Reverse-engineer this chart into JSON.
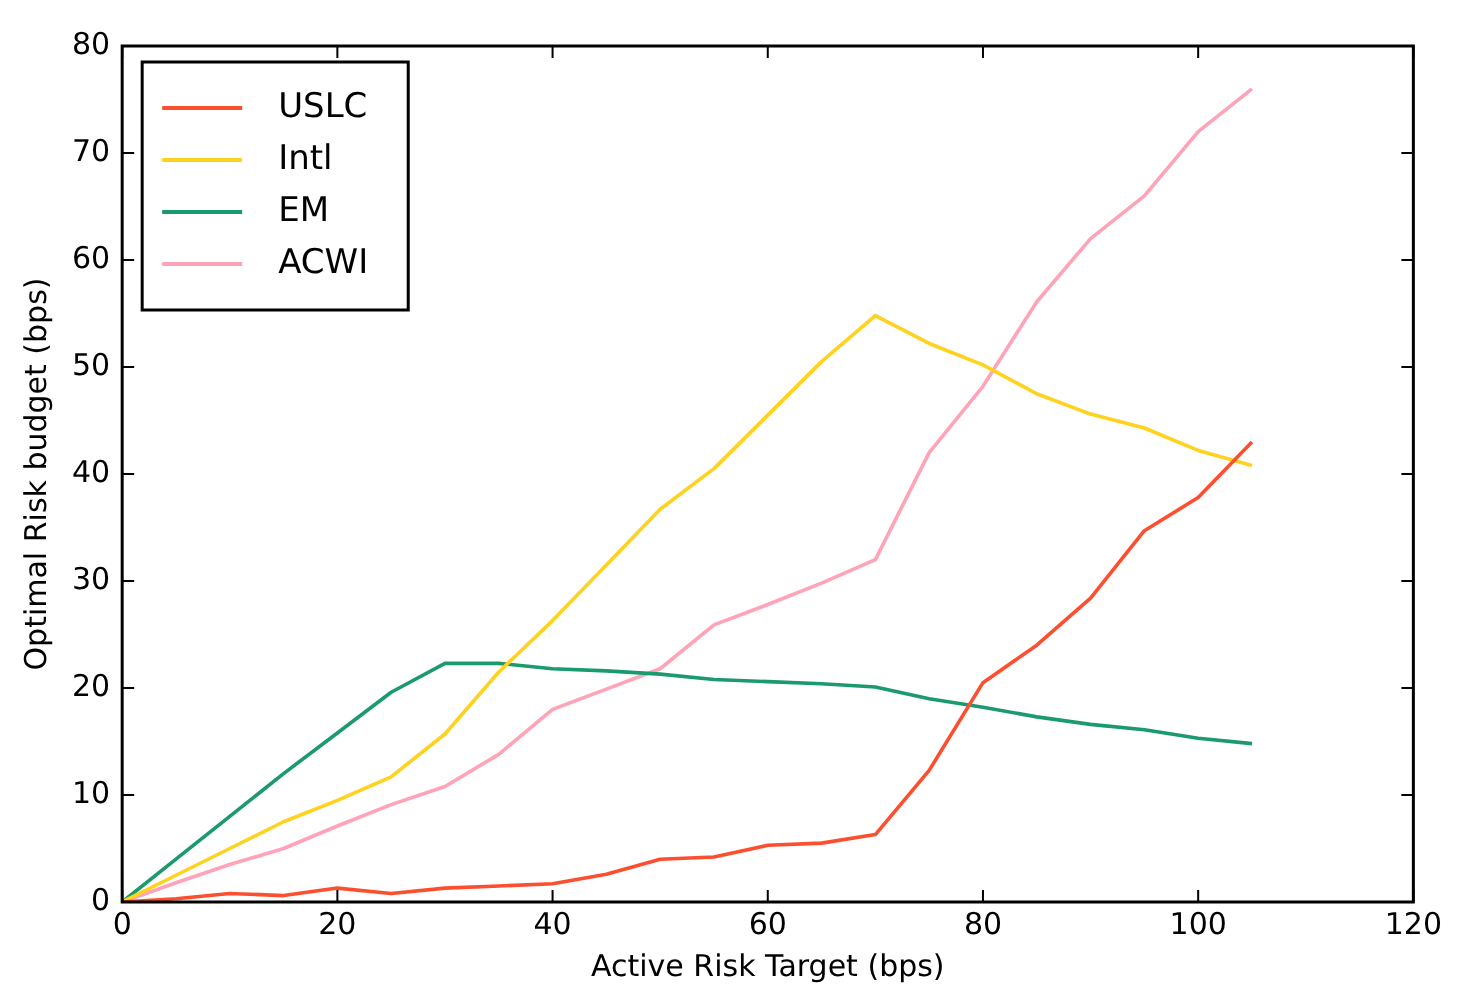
{
  "chart_data": {
    "type": "line",
    "xlabel": "Active Risk Target (bps)",
    "ylabel": "Optimal Risk budget (bps)",
    "x": [
      0,
      5,
      10,
      15,
      20,
      25,
      30,
      35,
      40,
      45,
      50,
      55,
      60,
      65,
      70,
      75,
      80,
      85,
      90,
      95,
      100,
      105
    ],
    "series": [
      {
        "name": "USLC",
        "color": "#fc4f30",
        "values": [
          0,
          0.3,
          0.8,
          0.6,
          1.3,
          0.8,
          1.3,
          1.5,
          1.7,
          2.6,
          4.0,
          4.2,
          5.3,
          5.5,
          6.3,
          12.3,
          20.5,
          24,
          28.4,
          34.7,
          37.8,
          43
        ]
      },
      {
        "name": "Intl",
        "color": "#ffd21f",
        "values": [
          0,
          2.5,
          5,
          7.5,
          9.5,
          11.7,
          15.7,
          21.5,
          26.3,
          31.5,
          36.7,
          40.5,
          45.5,
          50.5,
          54.8,
          52.2,
          50.2,
          47.5,
          45.6,
          44.3,
          42.2,
          40.8
        ]
      },
      {
        "name": "EM",
        "color": "#1b9a6e",
        "values": [
          0,
          4,
          8,
          12,
          15.8,
          19.6,
          22.3,
          22.3,
          21.8,
          21.6,
          21.3,
          20.8,
          20.6,
          20.4,
          20.1,
          19,
          18.2,
          17.3,
          16.6,
          16.1,
          15.3,
          14.8
        ]
      },
      {
        "name": "ACWI",
        "color": "#ffa3b8",
        "values": [
          0,
          1.8,
          3.5,
          5,
          7.1,
          9.1,
          10.8,
          13.8,
          18,
          19.9,
          21.8,
          25.9,
          27.8,
          29.8,
          32,
          42,
          48.2,
          56.1,
          62,
          66,
          72,
          76
        ]
      }
    ],
    "xlim": [
      0,
      120
    ],
    "xticks": [
      0,
      20,
      40,
      60,
      80,
      100,
      120
    ],
    "ylim": [
      0,
      80
    ],
    "yticks": [
      0,
      10,
      20,
      30,
      40,
      50,
      60,
      70,
      80
    ],
    "grid": false,
    "legend": "top left",
    "marker": "none",
    "line_style": "solid"
  }
}
